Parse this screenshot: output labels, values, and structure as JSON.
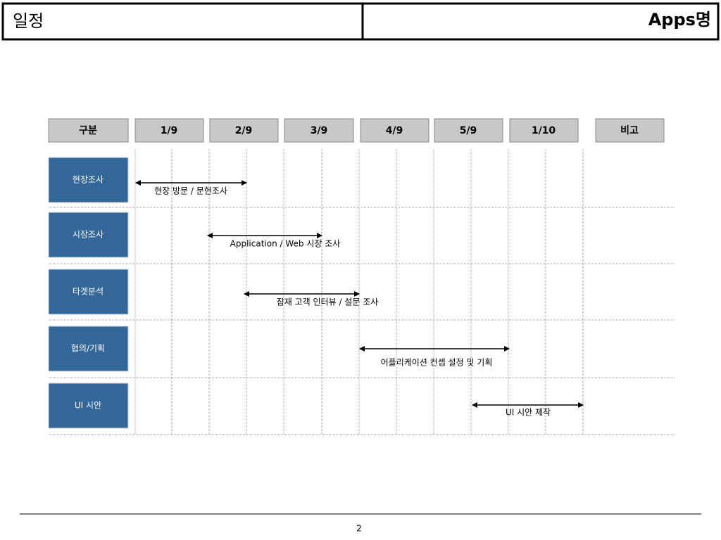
{
  "header": {
    "title": "일정",
    "app_name": "Apps명"
  },
  "table": {
    "columns": [
      "구분",
      "1/9",
      "2/9",
      "3/9",
      "4/9",
      "5/9",
      "1/10",
      "비고"
    ],
    "rows": [
      {
        "label": "현장조사",
        "task": "현장 방문 / 문헌조사"
      },
      {
        "label": "시장조사",
        "task": "Application / Web 시장 조사"
      },
      {
        "label": "타겟분석",
        "task": "잠재 고객 인터뷰 / 설문 조사"
      },
      {
        "label": "협의/기획",
        "task": "어플리케이션 컨셉 설정 및 기획"
      },
      {
        "label": "UI 시안",
        "task": "UI 시안 제작"
      }
    ]
  },
  "footer": {
    "page": "2"
  }
}
